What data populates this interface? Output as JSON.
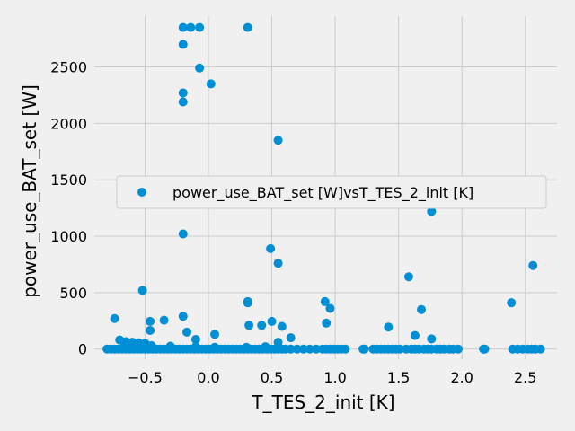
{
  "chart_data": {
    "type": "scatter",
    "xlabel": "T_TES_2_init [K]",
    "ylabel": "power_use_BAT_set [W]",
    "xlim": [
      -0.9,
      2.75
    ],
    "ylim": [
      -90,
      2950
    ],
    "xticks": [
      -0.5,
      0.0,
      0.5,
      1.0,
      1.5,
      2.0,
      2.5
    ],
    "xtick_labels": [
      "−0.5",
      "0.0",
      "0.5",
      "1.0",
      "1.5",
      "2.0",
      "2.5"
    ],
    "yticks": [
      0,
      500,
      1000,
      1500,
      2000,
      2500
    ],
    "ytick_labels": [
      "0",
      "500",
      "1000",
      "1500",
      "2000",
      "2500"
    ],
    "grid": true,
    "legend_position": "center-right",
    "colors": {
      "series": "#008fd5",
      "background": "#f0f0f0",
      "grid": "#cbcbcb"
    },
    "series": [
      {
        "name": "power_use_BAT_set [W]vsT_TES_2_init [K]",
        "points": [
          [
            -0.2,
            2850
          ],
          [
            -0.14,
            2850
          ],
          [
            -0.07,
            2850
          ],
          [
            0.31,
            2850
          ],
          [
            -0.2,
            2700
          ],
          [
            -0.07,
            2490
          ],
          [
            0.02,
            2350
          ],
          [
            -0.2,
            2270
          ],
          [
            -0.2,
            2190
          ],
          [
            0.55,
            1850
          ],
          [
            0.46,
            1470
          ],
          [
            1.76,
            1470
          ],
          [
            1.76,
            1220
          ],
          [
            -0.2,
            1020
          ],
          [
            0.49,
            890
          ],
          [
            0.55,
            760
          ],
          [
            2.56,
            740
          ],
          [
            1.58,
            640
          ],
          [
            -0.52,
            520
          ],
          [
            0.31,
            420
          ],
          [
            0.92,
            420
          ],
          [
            0.31,
            410
          ],
          [
            2.39,
            410
          ],
          [
            0.96,
            360
          ],
          [
            1.68,
            350
          ],
          [
            -0.2,
            290
          ],
          [
            -0.74,
            270
          ],
          [
            -0.35,
            255
          ],
          [
            -0.46,
            245
          ],
          [
            0.5,
            245
          ],
          [
            0.93,
            230
          ],
          [
            0.32,
            210
          ],
          [
            0.42,
            210
          ],
          [
            0.58,
            200
          ],
          [
            1.42,
            195
          ],
          [
            -0.46,
            165
          ],
          [
            -0.17,
            150
          ],
          [
            0.05,
            130
          ],
          [
            1.63,
            120
          ],
          [
            0.65,
            100
          ],
          [
            1.76,
            90
          ],
          [
            -0.1,
            85
          ],
          [
            -0.7,
            80
          ],
          [
            -0.65,
            65
          ],
          [
            -0.6,
            60
          ],
          [
            -0.55,
            55
          ],
          [
            -0.5,
            50
          ],
          [
            0.55,
            60
          ],
          [
            -0.66,
            40
          ],
          [
            -0.58,
            35
          ],
          [
            -0.45,
            30
          ],
          [
            -0.3,
            25
          ],
          [
            0.45,
            20
          ],
          [
            0.3,
            15
          ],
          [
            -0.1,
            20
          ],
          [
            0.05,
            15
          ],
          [
            -0.8,
            0
          ],
          [
            -0.77,
            0
          ],
          [
            -0.74,
            0
          ],
          [
            -0.71,
            0
          ],
          [
            -0.68,
            0
          ],
          [
            -0.65,
            0
          ],
          [
            -0.62,
            0
          ],
          [
            -0.59,
            0
          ],
          [
            -0.56,
            0
          ],
          [
            -0.53,
            0
          ],
          [
            -0.5,
            0
          ],
          [
            -0.47,
            0
          ],
          [
            -0.44,
            0
          ],
          [
            -0.41,
            0
          ],
          [
            -0.38,
            0
          ],
          [
            -0.35,
            0
          ],
          [
            -0.32,
            0
          ],
          [
            -0.29,
            0
          ],
          [
            -0.26,
            0
          ],
          [
            -0.23,
            0
          ],
          [
            -0.2,
            0
          ],
          [
            -0.17,
            0
          ],
          [
            -0.14,
            0
          ],
          [
            -0.11,
            0
          ],
          [
            -0.08,
            0
          ],
          [
            -0.05,
            0
          ],
          [
            -0.02,
            0
          ],
          [
            0.01,
            0
          ],
          [
            0.04,
            0
          ],
          [
            0.07,
            0
          ],
          [
            0.1,
            0
          ],
          [
            0.13,
            0
          ],
          [
            0.16,
            0
          ],
          [
            0.19,
            0
          ],
          [
            0.22,
            0
          ],
          [
            0.25,
            0
          ],
          [
            0.28,
            0
          ],
          [
            0.31,
            0
          ],
          [
            0.34,
            0
          ],
          [
            0.37,
            0
          ],
          [
            0.4,
            0
          ],
          [
            0.43,
            0
          ],
          [
            0.46,
            0
          ],
          [
            0.49,
            0
          ],
          [
            0.52,
            0
          ],
          [
            0.55,
            0
          ],
          [
            0.58,
            0
          ],
          [
            0.61,
            0
          ],
          [
            0.65,
            0
          ],
          [
            0.7,
            0
          ],
          [
            0.75,
            0
          ],
          [
            0.8,
            0
          ],
          [
            0.85,
            0
          ],
          [
            0.9,
            0
          ],
          [
            0.93,
            0
          ],
          [
            0.96,
            0
          ],
          [
            0.99,
            0
          ],
          [
            1.02,
            0
          ],
          [
            1.05,
            0
          ],
          [
            1.08,
            0
          ],
          [
            1.22,
            0
          ],
          [
            1.23,
            0
          ],
          [
            1.3,
            0
          ],
          [
            1.33,
            0
          ],
          [
            1.36,
            0
          ],
          [
            1.39,
            0
          ],
          [
            1.42,
            0
          ],
          [
            1.45,
            0
          ],
          [
            1.48,
            0
          ],
          [
            1.51,
            0
          ],
          [
            1.56,
            0
          ],
          [
            1.6,
            0
          ],
          [
            1.63,
            0
          ],
          [
            1.66,
            0
          ],
          [
            1.7,
            0
          ],
          [
            1.73,
            0
          ],
          [
            1.76,
            0
          ],
          [
            1.8,
            0
          ],
          [
            1.83,
            0
          ],
          [
            1.86,
            0
          ],
          [
            1.9,
            0
          ],
          [
            1.93,
            0
          ],
          [
            1.97,
            0
          ],
          [
            2.17,
            0
          ],
          [
            2.18,
            0
          ],
          [
            2.4,
            0
          ],
          [
            2.44,
            0
          ],
          [
            2.48,
            0
          ],
          [
            2.52,
            0
          ],
          [
            2.55,
            0
          ],
          [
            2.58,
            0
          ],
          [
            2.62,
            0
          ]
        ]
      }
    ]
  }
}
